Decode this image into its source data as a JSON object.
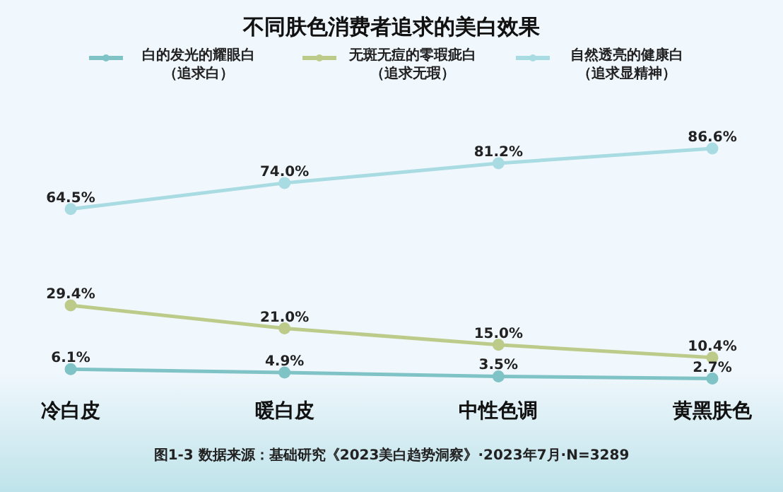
{
  "chart_data": {
    "type": "line",
    "title": "不同肤色消费者追求的美白效果",
    "categories": [
      "冷白皮",
      "暖白皮",
      "中性色调",
      "黄黑肤色"
    ],
    "series": [
      {
        "name": "白的发光的耀眼白（追求白）",
        "color": "#7fc3c6",
        "values": [
          6.1,
          4.9,
          3.5,
          2.7
        ],
        "value_labels": [
          "6.1%",
          "4.9%",
          "3.5%",
          "2.7%"
        ]
      },
      {
        "name": "无斑无痘的零瑕疵白（追求无瑕）",
        "color": "#bccb8a",
        "values": [
          29.4,
          21.0,
          15.0,
          10.4
        ],
        "value_labels": [
          "29.4%",
          "21.0%",
          "15.0%",
          "10.4%"
        ]
      },
      {
        "name": "自然透亮的健康白（追求显精神）",
        "color": "#a9dbe2",
        "values": [
          64.5,
          74.0,
          81.2,
          86.6
        ],
        "value_labels": [
          "64.5%",
          "74.0%",
          "81.2%",
          "86.6%"
        ]
      }
    ],
    "legend": "top",
    "grid": false,
    "marker": "circle",
    "line_style": "solid",
    "annotations": [
      "图1-3 数据来源：基础研究《2023美白趋势洞察》·2023年7月·N=3289"
    ]
  }
}
